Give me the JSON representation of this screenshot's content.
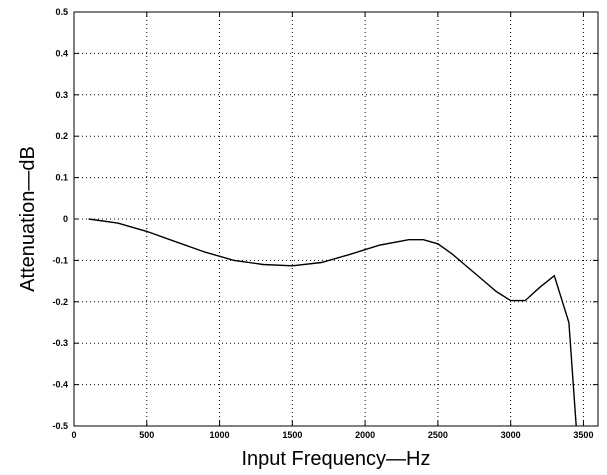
{
  "chart_data": {
    "type": "line",
    "title": "",
    "xlabel": "Input Frequency—Hz",
    "ylabel": "Attenuation—dB",
    "xlim": [
      0,
      3600
    ],
    "ylim": [
      -0.5,
      0.5
    ],
    "xticks": [
      0,
      500,
      1000,
      1500,
      2000,
      2500,
      3000,
      3500
    ],
    "xtick_labels": [
      "0",
      "500",
      "1000",
      "1500",
      "2000",
      "2500",
      "3000",
      "3500"
    ],
    "yticks": [
      0.5,
      0.4,
      0.3,
      0.2,
      0.1,
      0,
      -0.1,
      -0.2,
      -0.3,
      -0.4,
      -0.5
    ],
    "ytick_labels": [
      "0.5",
      "0.4",
      "0.3",
      "0.2",
      "0.1",
      "0",
      "-0.1",
      "-0.2",
      "-0.3",
      "-0.4",
      "-0.5"
    ],
    "grid": true,
    "series": [
      {
        "x": [
          100,
          300,
          500,
          700,
          900,
          1100,
          1300,
          1500,
          1700,
          1900,
          2100,
          2300,
          2400,
          2500,
          2600,
          2700,
          2800,
          2900,
          3000,
          3100,
          3200,
          3300,
          3400,
          3450
        ],
        "y": [
          0,
          -0.01,
          -0.03,
          -0.055,
          -0.08,
          -0.1,
          -0.11,
          -0.113,
          -0.105,
          -0.085,
          -0.063,
          -0.05,
          -0.05,
          -0.06,
          -0.085,
          -0.115,
          -0.145,
          -0.175,
          -0.197,
          -0.197,
          -0.165,
          -0.137,
          -0.25,
          -0.5
        ]
      }
    ]
  }
}
